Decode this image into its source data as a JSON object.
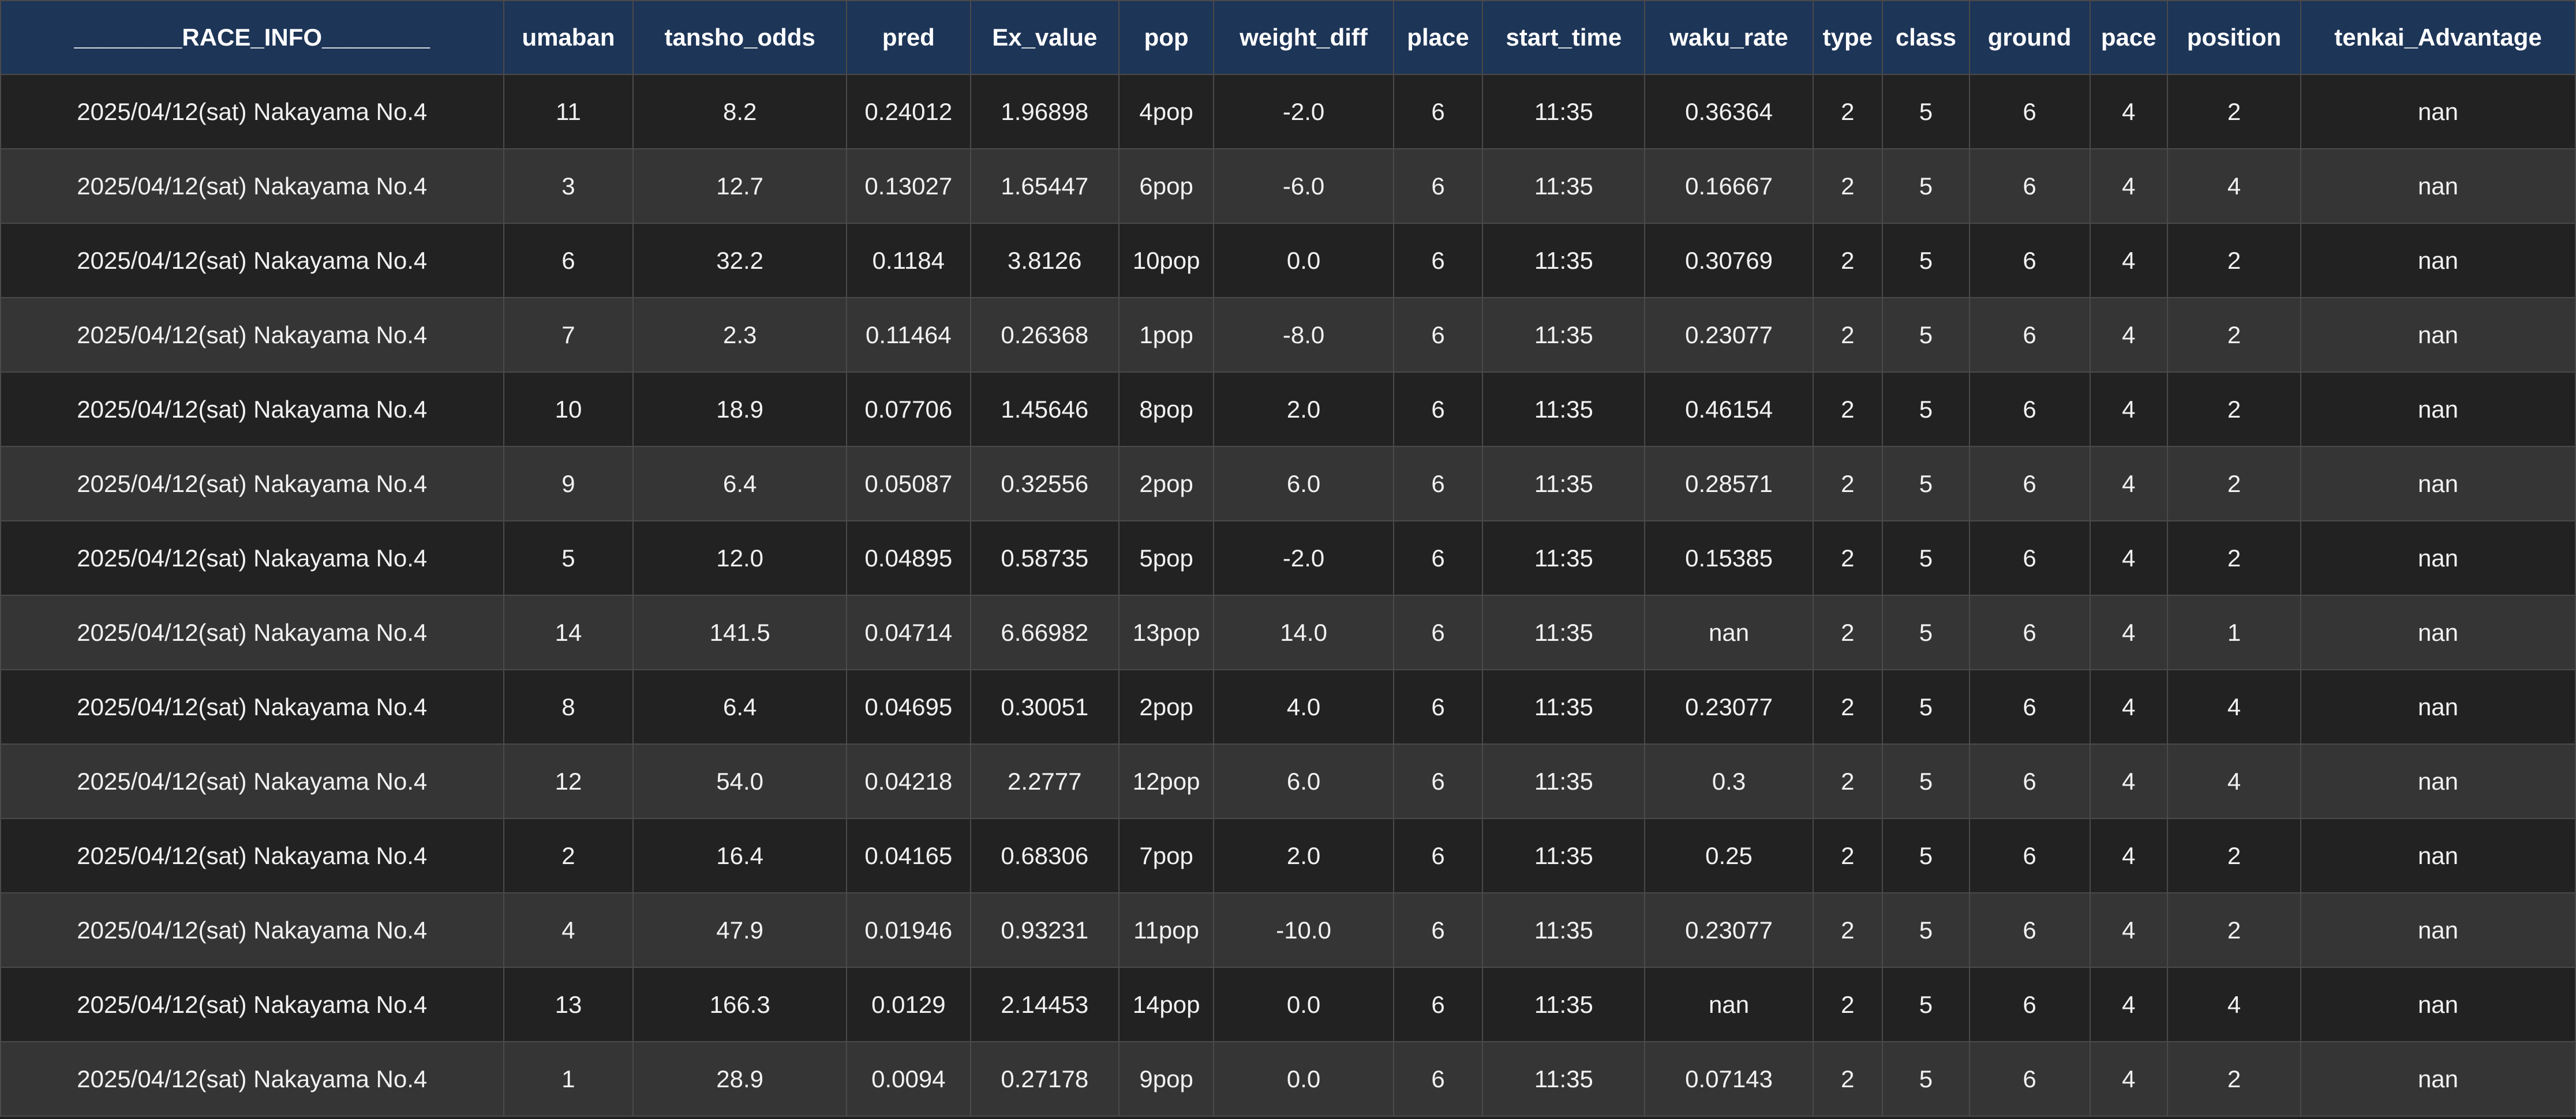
{
  "colors": {
    "header_bg": "#1d3557",
    "header_text": "#ffffff",
    "row_dark": "#222222",
    "row_light": "#353535",
    "cell_text": "#f2f2f2",
    "grid_line": "#4a4a4a"
  },
  "table": {
    "headers": [
      "________RACE_INFO________",
      "umaban",
      "tansho_odds",
      "pred",
      "Ex_value",
      "pop",
      "weight_diff",
      "place",
      "start_time",
      "waku_rate",
      "type",
      "class",
      "ground",
      "pace",
      "position",
      "tenkai_Advantage"
    ],
    "rows": [
      [
        "2025/04/12(sat) Nakayama No.4",
        "11",
        "8.2",
        "0.24012",
        "1.96898",
        "4pop",
        "-2.0",
        "6",
        "11:35",
        "0.36364",
        "2",
        "5",
        "6",
        "4",
        "2",
        "nan"
      ],
      [
        "2025/04/12(sat) Nakayama No.4",
        "3",
        "12.7",
        "0.13027",
        "1.65447",
        "6pop",
        "-6.0",
        "6",
        "11:35",
        "0.16667",
        "2",
        "5",
        "6",
        "4",
        "4",
        "nan"
      ],
      [
        "2025/04/12(sat) Nakayama No.4",
        "6",
        "32.2",
        "0.1184",
        "3.8126",
        "10pop",
        "0.0",
        "6",
        "11:35",
        "0.30769",
        "2",
        "5",
        "6",
        "4",
        "2",
        "nan"
      ],
      [
        "2025/04/12(sat) Nakayama No.4",
        "7",
        "2.3",
        "0.11464",
        "0.26368",
        "1pop",
        "-8.0",
        "6",
        "11:35",
        "0.23077",
        "2",
        "5",
        "6",
        "4",
        "2",
        "nan"
      ],
      [
        "2025/04/12(sat) Nakayama No.4",
        "10",
        "18.9",
        "0.07706",
        "1.45646",
        "8pop",
        "2.0",
        "6",
        "11:35",
        "0.46154",
        "2",
        "5",
        "6",
        "4",
        "2",
        "nan"
      ],
      [
        "2025/04/12(sat) Nakayama No.4",
        "9",
        "6.4",
        "0.05087",
        "0.32556",
        "2pop",
        "6.0",
        "6",
        "11:35",
        "0.28571",
        "2",
        "5",
        "6",
        "4",
        "2",
        "nan"
      ],
      [
        "2025/04/12(sat) Nakayama No.4",
        "5",
        "12.0",
        "0.04895",
        "0.58735",
        "5pop",
        "-2.0",
        "6",
        "11:35",
        "0.15385",
        "2",
        "5",
        "6",
        "4",
        "2",
        "nan"
      ],
      [
        "2025/04/12(sat) Nakayama No.4",
        "14",
        "141.5",
        "0.04714",
        "6.66982",
        "13pop",
        "14.0",
        "6",
        "11:35",
        "nan",
        "2",
        "5",
        "6",
        "4",
        "1",
        "nan"
      ],
      [
        "2025/04/12(sat) Nakayama No.4",
        "8",
        "6.4",
        "0.04695",
        "0.30051",
        "2pop",
        "4.0",
        "6",
        "11:35",
        "0.23077",
        "2",
        "5",
        "6",
        "4",
        "4",
        "nan"
      ],
      [
        "2025/04/12(sat) Nakayama No.4",
        "12",
        "54.0",
        "0.04218",
        "2.2777",
        "12pop",
        "6.0",
        "6",
        "11:35",
        "0.3",
        "2",
        "5",
        "6",
        "4",
        "4",
        "nan"
      ],
      [
        "2025/04/12(sat) Nakayama No.4",
        "2",
        "16.4",
        "0.04165",
        "0.68306",
        "7pop",
        "2.0",
        "6",
        "11:35",
        "0.25",
        "2",
        "5",
        "6",
        "4",
        "2",
        "nan"
      ],
      [
        "2025/04/12(sat) Nakayama No.4",
        "4",
        "47.9",
        "0.01946",
        "0.93231",
        "11pop",
        "-10.0",
        "6",
        "11:35",
        "0.23077",
        "2",
        "5",
        "6",
        "4",
        "2",
        "nan"
      ],
      [
        "2025/04/12(sat) Nakayama No.4",
        "13",
        "166.3",
        "0.0129",
        "2.14453",
        "14pop",
        "0.0",
        "6",
        "11:35",
        "nan",
        "2",
        "5",
        "6",
        "4",
        "4",
        "nan"
      ],
      [
        "2025/04/12(sat) Nakayama No.4",
        "1",
        "28.9",
        "0.0094",
        "0.27178",
        "9pop",
        "0.0",
        "6",
        "11:35",
        "0.07143",
        "2",
        "5",
        "6",
        "4",
        "2",
        "nan"
      ]
    ]
  }
}
